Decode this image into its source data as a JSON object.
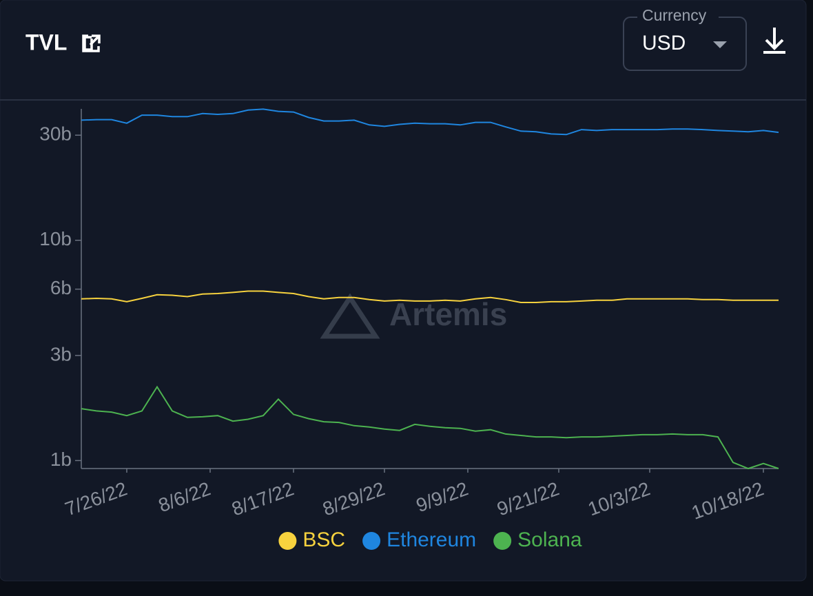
{
  "header": {
    "title": "TVL",
    "currency_label": "Currency",
    "currency_value": "USD"
  },
  "chart_data": {
    "type": "line",
    "log_scale": true,
    "watermark": "Artemis",
    "x": [
      "7/20/22",
      "7/22/22",
      "7/24/22",
      "7/26/22",
      "7/28/22",
      "7/30/22",
      "8/1/22",
      "8/3/22",
      "8/5/22",
      "8/7/22",
      "8/9/22",
      "8/11/22",
      "8/13/22",
      "8/15/22",
      "8/17/22",
      "8/19/22",
      "8/21/22",
      "8/23/22",
      "8/25/22",
      "8/27/22",
      "8/29/22",
      "8/31/22",
      "9/2/22",
      "9/4/22",
      "9/6/22",
      "9/8/22",
      "9/10/22",
      "9/12/22",
      "9/14/22",
      "9/16/22",
      "9/18/22",
      "9/20/22",
      "9/22/22",
      "9/24/22",
      "9/26/22",
      "9/28/22",
      "9/30/22",
      "10/2/22",
      "10/4/22",
      "10/6/22",
      "10/8/22",
      "10/10/22",
      "10/12/22",
      "10/14/22",
      "10/16/22",
      "10/18/22",
      "10/20/22"
    ],
    "xlim": [
      "7/20/22",
      "10/20/22"
    ],
    "xticks": [
      "7/26/22",
      "8/6/22",
      "8/17/22",
      "8/29/22",
      "9/9/22",
      "9/21/22",
      "10/3/22",
      "10/18/22"
    ],
    "ylim": [
      0.92,
      39.5
    ],
    "yticks": [
      {
        "value": 1,
        "label": "1b"
      },
      {
        "value": 3,
        "label": "3b"
      },
      {
        "value": 6,
        "label": "6b"
      },
      {
        "value": 10,
        "label": "10b"
      },
      {
        "value": 30,
        "label": "30b"
      }
    ],
    "series": [
      {
        "name": "BSC",
        "color": "#f7d23e",
        "values": [
          5.42,
          5.45,
          5.42,
          5.26,
          5.45,
          5.66,
          5.63,
          5.55,
          5.7,
          5.73,
          5.8,
          5.88,
          5.88,
          5.8,
          5.73,
          5.55,
          5.42,
          5.5,
          5.5,
          5.38,
          5.3,
          5.34,
          5.3,
          5.3,
          5.34,
          5.3,
          5.42,
          5.5,
          5.38,
          5.22,
          5.22,
          5.26,
          5.26,
          5.3,
          5.34,
          5.34,
          5.42,
          5.42,
          5.42,
          5.42,
          5.42,
          5.38,
          5.38,
          5.34,
          5.34,
          5.34,
          5.34
        ]
      },
      {
        "name": "Ethereum",
        "color": "#1f86e0",
        "values": [
          35.1,
          35.3,
          35.3,
          34.0,
          37.0,
          37.0,
          36.4,
          36.4,
          37.6,
          37.3,
          37.6,
          39.0,
          39.4,
          38.5,
          38.2,
          36.1,
          34.8,
          34.8,
          35.1,
          33.4,
          32.9,
          33.6,
          34.0,
          33.8,
          33.8,
          33.4,
          34.3,
          34.3,
          32.7,
          31.3,
          31.1,
          30.4,
          30.2,
          31.8,
          31.5,
          31.8,
          31.8,
          31.8,
          31.8,
          32.0,
          32.0,
          31.8,
          31.5,
          31.3,
          31.1,
          31.5,
          30.9
        ]
      },
      {
        "name": "Solana",
        "color": "#4db350",
        "values": [
          1.72,
          1.68,
          1.66,
          1.6,
          1.68,
          2.16,
          1.68,
          1.57,
          1.58,
          1.6,
          1.51,
          1.54,
          1.6,
          1.9,
          1.62,
          1.55,
          1.5,
          1.49,
          1.44,
          1.42,
          1.39,
          1.37,
          1.46,
          1.43,
          1.41,
          1.4,
          1.36,
          1.38,
          1.32,
          1.3,
          1.28,
          1.28,
          1.27,
          1.28,
          1.28,
          1.29,
          1.3,
          1.31,
          1.31,
          1.32,
          1.31,
          1.31,
          1.28,
          0.98,
          0.92,
          0.97,
          0.92
        ]
      }
    ]
  }
}
